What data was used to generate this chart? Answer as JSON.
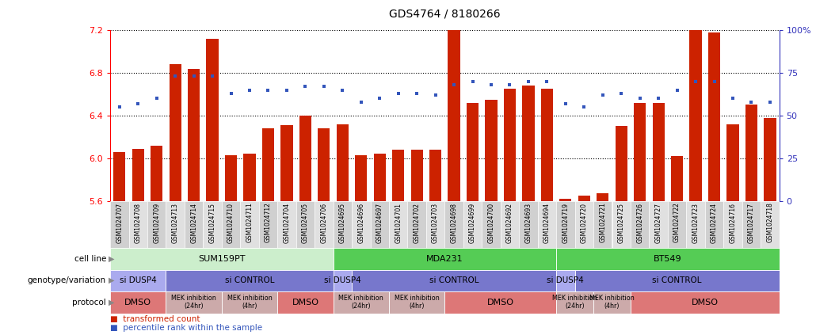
{
  "title": "GDS4764 / 8180266",
  "samples": [
    "GSM1024707",
    "GSM1024708",
    "GSM1024709",
    "GSM1024713",
    "GSM1024714",
    "GSM1024715",
    "GSM1024710",
    "GSM1024711",
    "GSM1024712",
    "GSM1024704",
    "GSM1024705",
    "GSM1024706",
    "GSM1024695",
    "GSM1024696",
    "GSM1024697",
    "GSM1024701",
    "GSM1024702",
    "GSM1024703",
    "GSM1024698",
    "GSM1024699",
    "GSM1024700",
    "GSM1024692",
    "GSM1024693",
    "GSM1024694",
    "GSM1024719",
    "GSM1024720",
    "GSM1024721",
    "GSM1024725",
    "GSM1024726",
    "GSM1024727",
    "GSM1024722",
    "GSM1024723",
    "GSM1024724",
    "GSM1024716",
    "GSM1024717",
    "GSM1024718"
  ],
  "bar_values": [
    6.06,
    6.09,
    6.12,
    6.88,
    6.84,
    7.12,
    6.03,
    6.04,
    6.28,
    6.31,
    6.4,
    6.28,
    6.32,
    6.03,
    6.04,
    6.08,
    6.08,
    6.08,
    7.2,
    6.52,
    6.55,
    6.65,
    6.68,
    6.65,
    5.62,
    5.65,
    5.67,
    6.3,
    6.52,
    6.52,
    6.02,
    7.2,
    7.18,
    6.32,
    6.5,
    6.38
  ],
  "percentile_values": [
    55,
    57,
    60,
    73,
    73,
    73,
    63,
    65,
    65,
    65,
    67,
    67,
    65,
    58,
    60,
    63,
    63,
    62,
    68,
    70,
    68,
    68,
    70,
    70,
    57,
    55,
    62,
    63,
    60,
    60,
    65,
    70,
    70,
    60,
    58,
    58
  ],
  "ylim_left": [
    5.6,
    7.2
  ],
  "ylim_right": [
    0,
    100
  ],
  "yticks_left": [
    5.6,
    6.0,
    6.4,
    6.8,
    7.2
  ],
  "yticks_right": [
    0,
    25,
    50,
    75,
    100
  ],
  "bar_color": "#cc2200",
  "percentile_color": "#3355bb",
  "cell_line_blocks": [
    {
      "label": "SUM159PT",
      "start": 0,
      "end": 11,
      "color": "#cceecc"
    },
    {
      "label": "MDA231",
      "start": 12,
      "end": 23,
      "color": "#55cc55"
    },
    {
      "label": "BT549",
      "start": 24,
      "end": 35,
      "color": "#55cc55"
    }
  ],
  "genotype_blocks": [
    {
      "label": "si DUSP4",
      "start": 0,
      "end": 2,
      "color": "#aaaaee"
    },
    {
      "label": "si CONTROL",
      "start": 3,
      "end": 11,
      "color": "#7777cc"
    },
    {
      "label": "si DUSP4",
      "start": 12,
      "end": 12,
      "color": "#aaaaee"
    },
    {
      "label": "si CONTROL",
      "start": 13,
      "end": 23,
      "color": "#7777cc"
    },
    {
      "label": "si DUSP4",
      "start": 24,
      "end": 24,
      "color": "#aaaaee"
    },
    {
      "label": "si CONTROL",
      "start": 25,
      "end": 35,
      "color": "#7777cc"
    }
  ],
  "protocol_blocks": [
    {
      "label": "DMSO",
      "start": 0,
      "end": 2,
      "color": "#dd7777"
    },
    {
      "label": "MEK inhibition\n(24hr)",
      "start": 3,
      "end": 5,
      "color": "#ccaaaa"
    },
    {
      "label": "MEK inhibition\n(4hr)",
      "start": 6,
      "end": 8,
      "color": "#ccaaaa"
    },
    {
      "label": "DMSO",
      "start": 9,
      "end": 11,
      "color": "#dd7777"
    },
    {
      "label": "MEK inhibition\n(24hr)",
      "start": 12,
      "end": 14,
      "color": "#ccaaaa"
    },
    {
      "label": "MEK inhibition\n(4hr)",
      "start": 15,
      "end": 17,
      "color": "#ccaaaa"
    },
    {
      "label": "DMSO",
      "start": 18,
      "end": 23,
      "color": "#dd7777"
    },
    {
      "label": "MEK inhibition\n(24hr)",
      "start": 24,
      "end": 25,
      "color": "#ccaaaa"
    },
    {
      "label": "MEK inhibition\n(4hr)",
      "start": 26,
      "end": 27,
      "color": "#ccaaaa"
    },
    {
      "label": "DMSO",
      "start": 28,
      "end": 35,
      "color": "#dd7777"
    }
  ],
  "row_labels": [
    "cell line",
    "genotype/variation",
    "protocol"
  ],
  "legend_bar_label": "transformed count",
  "legend_pct_label": "percentile rank within the sample"
}
